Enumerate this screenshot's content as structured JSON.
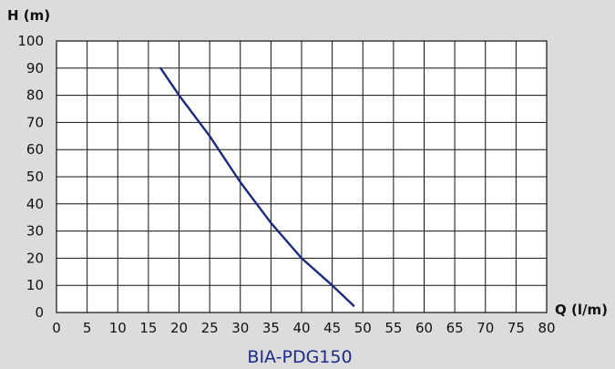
{
  "chart_data": {
    "type": "line",
    "title": "BIA-PDG150",
    "xlabel": "Q (l/m)",
    "ylabel": "H (m)",
    "xlim": [
      0,
      80
    ],
    "ylim": [
      0,
      100
    ],
    "x_ticks": [
      0,
      5,
      10,
      15,
      20,
      25,
      30,
      35,
      40,
      45,
      50,
      55,
      60,
      65,
      70,
      75,
      80
    ],
    "y_ticks": [
      0,
      10,
      20,
      30,
      40,
      50,
      60,
      70,
      80,
      90,
      100
    ],
    "grid": true,
    "series": [
      {
        "color": "#1a2a80",
        "x": [
          17,
          20,
          25,
          30,
          35,
          40,
          45,
          48.5
        ],
        "y": [
          90,
          80,
          65,
          48,
          33,
          20,
          10,
          2.5
        ]
      }
    ]
  }
}
